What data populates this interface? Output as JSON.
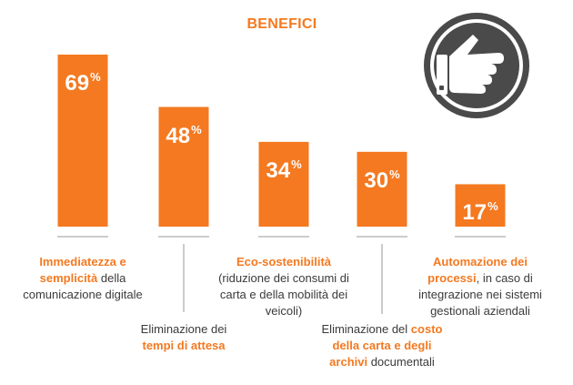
{
  "chart_data": {
    "type": "bar",
    "title": "BENEFICI",
    "categories": [
      "Immediatezza e semplicità della comunicazione digitale",
      "Eliminazione dei tempi di attesa",
      "Eco-sostenibilità (riduzione dei consumi di carta e della mobilità dei veicoli)",
      "Eliminazione del costo della carta e degli archivi documentali",
      "Automazione dei processi, in caso di integrazione nei sistemi gestionali aziendali"
    ],
    "values": [
      69,
      48,
      34,
      30,
      17
    ],
    "value_labels": [
      "69",
      "48",
      "34",
      "30",
      "17"
    ],
    "value_suffix": "%",
    "ylim": [
      0,
      69
    ],
    "bar_color": "#f47920",
    "highlight_color": "#f47920",
    "grid": false,
    "axes_visible": false
  },
  "labels": [
    {
      "segments": [
        {
          "text": "Immediatezza e",
          "hl": true,
          "br": true
        },
        {
          "text": "semplicità",
          "hl": true
        },
        {
          "text": " della",
          "hl": false,
          "br": true
        },
        {
          "text": "comunicazione digitale",
          "hl": false
        }
      ]
    },
    {
      "segments": [
        {
          "text": "Eliminazione dei",
          "hl": false,
          "br": true
        },
        {
          "text": "tempi di attesa",
          "hl": true
        }
      ]
    },
    {
      "segments": [
        {
          "text": "Eco-sostenibilità",
          "hl": true,
          "br": true
        },
        {
          "text": "(riduzione dei consumi di",
          "hl": false,
          "br": true
        },
        {
          "text": "carta e della mobilità dei",
          "hl": false,
          "br": true
        },
        {
          "text": "veicoli)",
          "hl": false
        }
      ]
    },
    {
      "segments": [
        {
          "text": "Eliminazione del ",
          "hl": false
        },
        {
          "text": "costo",
          "hl": true,
          "br": true
        },
        {
          "text": "della carta e degli",
          "hl": true,
          "br": true
        },
        {
          "text": "archivi",
          "hl": true
        },
        {
          "text": " documentali",
          "hl": false
        }
      ]
    },
    {
      "segments": [
        {
          "text": "Automazione dei",
          "hl": true,
          "br": true
        },
        {
          "text": "processi",
          "hl": true
        },
        {
          "text": ", in caso di",
          "hl": false,
          "br": true
        },
        {
          "text": "integrazione nei sistemi",
          "hl": false,
          "br": true
        },
        {
          "text": "gestionali aziendali",
          "hl": false
        }
      ]
    }
  ],
  "badge": {
    "icon": "pointing-hand-icon",
    "fill": "#4a4a4a"
  }
}
